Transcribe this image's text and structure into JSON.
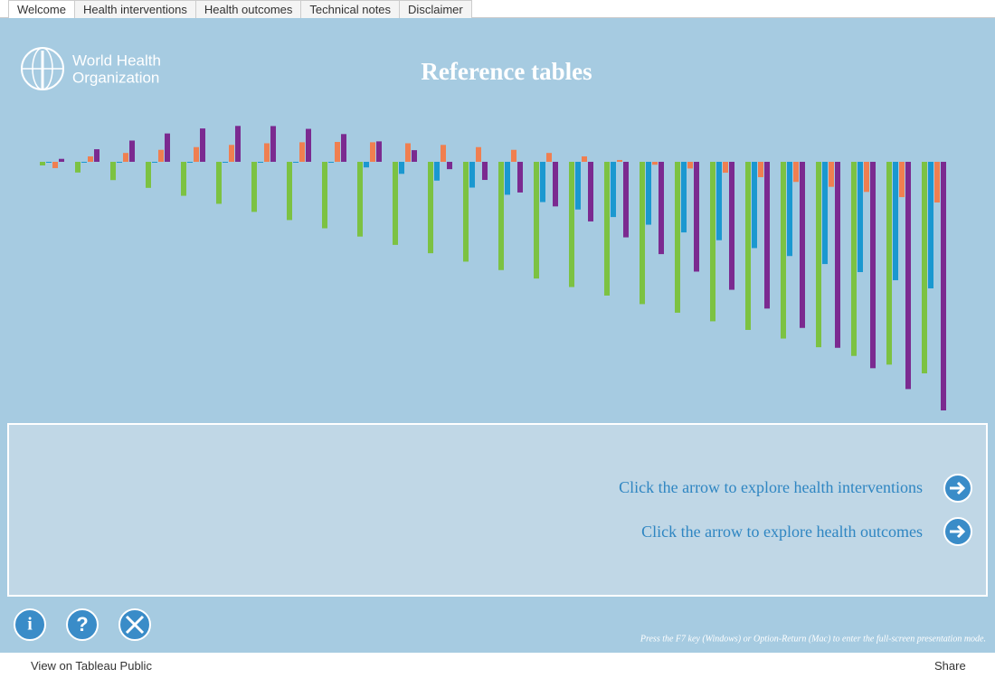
{
  "tabs": [
    "Welcome",
    "Health interventions",
    "Health outcomes",
    "Technical notes",
    "Disclaimer"
  ],
  "logo": {
    "line1": "World Health",
    "line2": "Organization"
  },
  "title": "Reference tables",
  "links": [
    "Click the arrow to explore health interventions",
    "Click the arrow to explore health outcomes"
  ],
  "footer_note": "Press the F7 key (Windows) or Option-Return (Mac) to enter the full-screen presentation mode.",
  "toolbar": {
    "view": "View on Tableau Public",
    "share": "Share"
  }
}
